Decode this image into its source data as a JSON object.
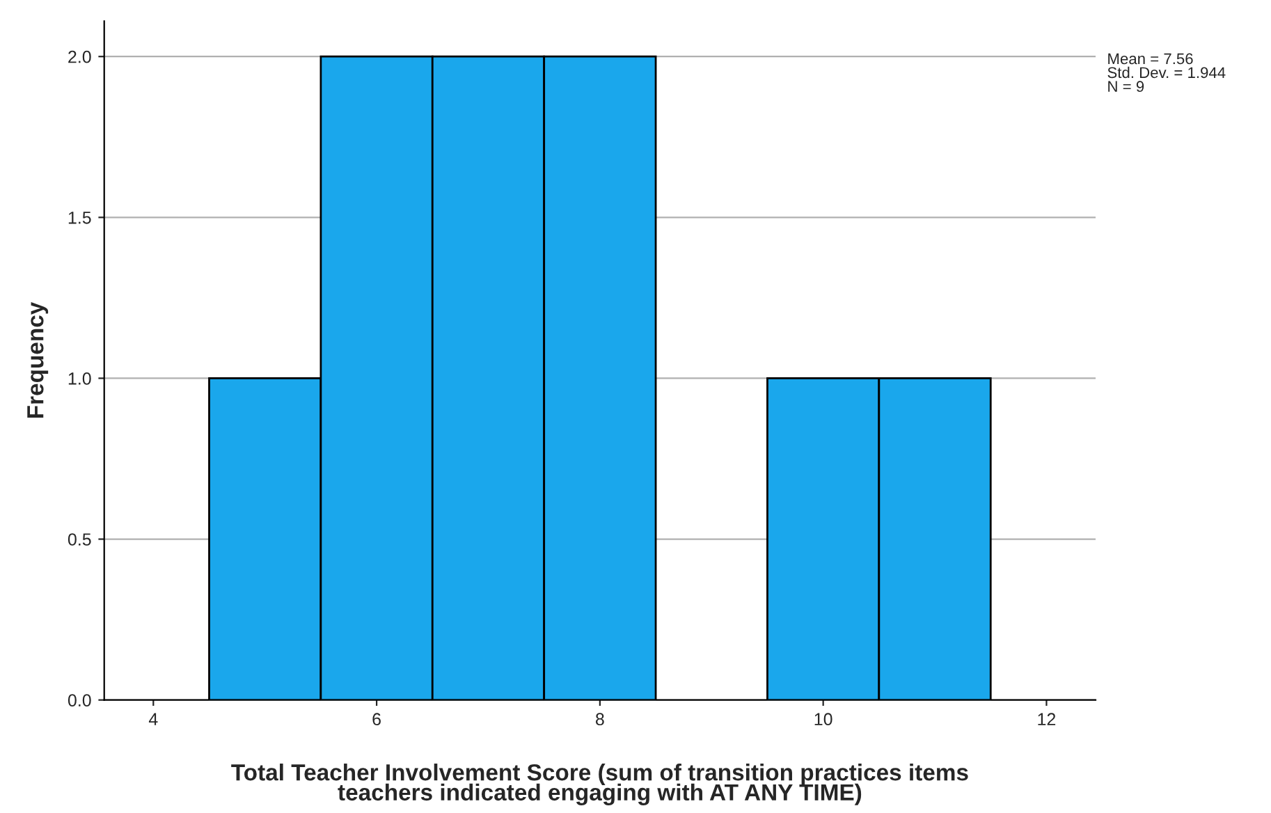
{
  "chart_data": {
    "type": "histogram",
    "xlabel": "Total Teacher Involvement Score (sum of transition practices items\nteachers indicated engaging with AT ANY TIME)",
    "ylabel": "Frequency",
    "bins": [
      4.5,
      5.5,
      6.5,
      7.5,
      8.5,
      9.5,
      10.5,
      11.5
    ],
    "values": [
      1,
      2,
      2,
      2,
      0,
      1,
      1
    ],
    "color": "#1aa7ec",
    "xlim": [
      3.56,
      12.44
    ],
    "xticks": [
      4,
      6,
      8,
      10,
      12
    ],
    "ylim": [
      0,
      2.11
    ],
    "yticks": [
      {
        "value": 0,
        "label": "0.0"
      },
      {
        "value": 0.5,
        "label": "0.5"
      },
      {
        "value": 1,
        "label": "1.0"
      },
      {
        "value": 1.5,
        "label": "1.5"
      },
      {
        "value": 2,
        "label": "2.0"
      }
    ],
    "grid": "y",
    "annotations": [
      "Mean = 7.56\nStd. Dev. = 1.944\nN = 9"
    ]
  }
}
